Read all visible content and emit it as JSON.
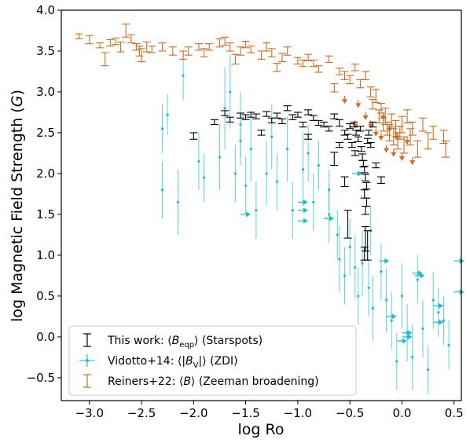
{
  "chart_data": {
    "type": "scatter",
    "xlabel": "log Ro",
    "ylabel": "log Magnetic Field Strength (G)",
    "xlim": [
      -3.27,
      0.57
    ],
    "ylim": [
      -0.78,
      4.0
    ],
    "xticks": [
      -3.0,
      -2.5,
      -2.0,
      -1.5,
      -1.0,
      -0.5,
      0.0,
      0.5
    ],
    "xtick_labels": [
      "−3.0",
      "−2.5",
      "−2.0",
      "−1.5",
      "−1.0",
      "−0.5",
      "0.0",
      "0.5"
    ],
    "yticks": [
      -0.5,
      0.0,
      0.5,
      1.0,
      1.5,
      2.0,
      2.5,
      3.0,
      3.5,
      4.0
    ],
    "ytick_labels": [
      "−0.5",
      "0.0",
      "0.5",
      "1.0",
      "1.5",
      "2.0",
      "2.5",
      "3.0",
      "3.5",
      "4.0"
    ],
    "grid": false,
    "legend_position": "lower-left",
    "series": [
      {
        "name": "This work: ⟨B_eqp⟩ (Starspots)",
        "color": "#000000",
        "marker": "errorbar-cap",
        "points": [
          [
            -2.0,
            2.46,
            0.04
          ],
          [
            -1.8,
            2.63,
            0.03
          ],
          [
            -1.7,
            2.74,
            0.03
          ],
          [
            -1.65,
            2.66,
            0.03
          ],
          [
            -1.55,
            2.71,
            0.03
          ],
          [
            -1.5,
            2.69,
            0.03
          ],
          [
            -1.45,
            2.72,
            0.03
          ],
          [
            -1.4,
            2.7,
            0.03
          ],
          [
            -1.3,
            2.73,
            0.03
          ],
          [
            -1.25,
            2.65,
            0.03
          ],
          [
            -1.2,
            2.71,
            0.03
          ],
          [
            -1.15,
            2.64,
            0.03
          ],
          [
            -1.1,
            2.8,
            0.03
          ],
          [
            -1.05,
            2.69,
            0.03
          ],
          [
            -1.0,
            2.72,
            0.03
          ],
          [
            -0.95,
            2.6,
            0.03
          ],
          [
            -0.9,
            2.75,
            0.03
          ],
          [
            -0.85,
            2.68,
            0.03
          ],
          [
            -0.8,
            2.62,
            0.03
          ],
          [
            -0.75,
            2.6,
            0.03
          ],
          [
            -0.7,
            2.55,
            0.03
          ],
          [
            -0.65,
            2.7,
            0.03
          ],
          [
            -0.6,
            2.62,
            0.04
          ],
          [
            -0.55,
            2.5,
            0.03
          ],
          [
            -0.52,
            2.45,
            0.03
          ],
          [
            -0.5,
            2.58,
            0.03
          ],
          [
            -0.48,
            2.35,
            0.03
          ],
          [
            -0.46,
            2.6,
            0.03
          ],
          [
            -0.44,
            2.5,
            0.03
          ],
          [
            -0.42,
            2.42,
            0.03
          ],
          [
            -0.4,
            2.55,
            0.03
          ],
          [
            -0.39,
            2.3,
            0.03
          ],
          [
            -0.38,
            2.2,
            0.04
          ],
          [
            -0.37,
            2.12,
            0.04
          ],
          [
            -0.36,
            2.05,
            0.04
          ],
          [
            -0.35,
            1.95,
            0.04
          ],
          [
            -0.34,
            1.85,
            0.04
          ],
          [
            -0.36,
            1.75,
            0.05
          ],
          [
            -0.34,
            1.65,
            0.05
          ],
          [
            -0.35,
            1.55,
            0.05
          ],
          [
            -0.33,
            2.4,
            0.03
          ],
          [
            -0.32,
            2.5,
            0.03
          ],
          [
            -0.3,
            2.35,
            0.03
          ],
          [
            -0.28,
            2.6,
            0.03
          ],
          [
            -0.25,
            2.1,
            0.03
          ],
          [
            -0.65,
            2.18,
            0.08
          ],
          [
            -0.55,
            1.9,
            0.06
          ],
          [
            -0.52,
            1.38,
            0.17
          ],
          [
            -0.36,
            1.02,
            0.08
          ],
          [
            -0.35,
            1.2,
            0.15
          ],
          [
            -0.33,
            1.12,
            0.18
          ],
          [
            -0.2,
            1.92,
            0.04
          ],
          [
            -1.35,
            2.5,
            0.03
          ],
          [
            -0.9,
            2.45,
            0.03
          ],
          [
            -0.6,
            2.35,
            0.03
          ],
          [
            -0.45,
            2.25,
            0.03
          ]
        ]
      },
      {
        "name": "Vidotto+14: ⟨|B_V|⟩ (ZDI)",
        "color": "#17becf",
        "marker": "dot-errorbar",
        "points": [
          [
            -2.3,
            2.55,
            0.3
          ],
          [
            -2.3,
            1.8,
            0.35
          ],
          [
            -2.25,
            2.72,
            0.25
          ],
          [
            -2.15,
            1.65,
            0.4
          ],
          [
            -2.1,
            3.2,
            0.3
          ],
          [
            -1.95,
            2.15,
            0.35
          ],
          [
            -1.9,
            1.95,
            0.3
          ],
          [
            -1.75,
            2.2,
            0.4
          ],
          [
            -1.7,
            2.8,
            0.5
          ],
          [
            -1.65,
            3.0,
            0.45
          ],
          [
            -1.6,
            2.0,
            0.35
          ],
          [
            -1.55,
            2.6,
            0.4
          ],
          [
            -1.5,
            1.85,
            0.35
          ],
          [
            -1.45,
            2.3,
            0.4
          ],
          [
            -1.4,
            1.55,
            0.35
          ],
          [
            -1.3,
            2.0,
            0.4
          ],
          [
            -1.25,
            2.45,
            0.4
          ],
          [
            -1.2,
            1.9,
            0.35
          ],
          [
            -1.1,
            2.3,
            0.4
          ],
          [
            -1.05,
            1.55,
            0.35
          ],
          [
            -0.95,
            2.05,
            0.45
          ],
          [
            -0.85,
            1.65,
            0.35
          ],
          [
            -0.8,
            2.1,
            0.3
          ],
          [
            -0.7,
            1.5,
            0.35
          ],
          [
            -0.62,
            1.25,
            0.3
          ],
          [
            -0.6,
            0.95,
            0.4
          ],
          [
            -0.55,
            0.75,
            0.35
          ],
          [
            -0.5,
            1.1,
            0.35
          ],
          [
            -0.45,
            0.85,
            0.4
          ],
          [
            -0.42,
            0.5,
            0.35
          ],
          [
            -0.38,
            0.9,
            0.4
          ],
          [
            -0.32,
            0.6,
            0.35
          ],
          [
            -0.3,
            1.3,
            0.3
          ],
          [
            -0.28,
            0.35,
            0.4
          ],
          [
            -0.2,
            0.8,
            0.35
          ],
          [
            -0.15,
            0.45,
            0.4
          ],
          [
            -0.1,
            0.2,
            0.35
          ],
          [
            -0.05,
            -0.3,
            0.35
          ],
          [
            0.0,
            0.5,
            0.4
          ],
          [
            0.05,
            0.05,
            0.35
          ],
          [
            0.1,
            -0.25,
            0.4
          ],
          [
            0.15,
            0.7,
            0.3
          ],
          [
            0.2,
            0.1,
            0.35
          ],
          [
            0.25,
            -0.4,
            0.3
          ],
          [
            0.3,
            0.45,
            0.35
          ],
          [
            0.35,
            0.3,
            0.3
          ],
          [
            0.4,
            0.2,
            0.3
          ],
          [
            0.45,
            -0.1,
            0.3
          ],
          [
            -1.55,
            2.4,
            0.3
          ],
          [
            -0.9,
            2.25,
            0.35
          ],
          [
            -0.7,
            1.8,
            0.25
          ]
        ],
        "upper_limits": [
          [
            -1.55,
            1.5
          ],
          [
            -1.0,
            1.65
          ],
          [
            -1.0,
            1.55
          ],
          [
            -1.0,
            1.42
          ],
          [
            -0.75,
            1.45
          ],
          [
            -0.48,
            2.0
          ],
          [
            -0.22,
            0.93
          ],
          [
            0.1,
            0.78
          ],
          [
            0.12,
            0.75
          ],
          [
            -0.15,
            0.25
          ],
          [
            0.0,
            0.05
          ],
          [
            0.0,
            0.0
          ],
          [
            -0.05,
            -0.05
          ],
          [
            0.3,
            0.38
          ],
          [
            0.3,
            0.18
          ],
          [
            0.5,
            0.93
          ],
          [
            0.5,
            0.55
          ]
        ]
      },
      {
        "name": "Reiners+22: ⟨B⟩ (Zeeman broadening)",
        "color": "#d2691e",
        "marker": "errorbar-cap",
        "points": [
          [
            -3.1,
            3.68,
            0.03
          ],
          [
            -3.0,
            3.64,
            0.05
          ],
          [
            -2.9,
            3.57,
            0.03
          ],
          [
            -2.85,
            3.4,
            0.08
          ],
          [
            -2.8,
            3.6,
            0.04
          ],
          [
            -2.75,
            3.62,
            0.04
          ],
          [
            -2.7,
            3.55,
            0.06
          ],
          [
            -2.65,
            3.75,
            0.08
          ],
          [
            -2.6,
            3.65,
            0.05
          ],
          [
            -2.55,
            3.55,
            0.04
          ],
          [
            -2.52,
            3.5,
            0.06
          ],
          [
            -2.5,
            3.45,
            0.08
          ],
          [
            -2.45,
            3.55,
            0.06
          ],
          [
            -2.4,
            3.52,
            0.04
          ],
          [
            -2.3,
            3.55,
            0.05
          ],
          [
            -2.2,
            3.5,
            0.05
          ],
          [
            -2.1,
            3.45,
            0.05
          ],
          [
            -2.05,
            3.5,
            0.05
          ],
          [
            -1.95,
            3.55,
            0.04
          ],
          [
            -1.9,
            3.48,
            0.05
          ],
          [
            -1.85,
            3.55,
            0.04
          ],
          [
            -1.75,
            3.6,
            0.05
          ],
          [
            -1.7,
            3.62,
            0.05
          ],
          [
            -1.65,
            3.55,
            0.05
          ],
          [
            -1.55,
            3.5,
            0.05
          ],
          [
            -1.5,
            3.58,
            0.04
          ],
          [
            -1.45,
            3.52,
            0.04
          ],
          [
            -1.35,
            3.45,
            0.05
          ],
          [
            -1.3,
            3.55,
            0.05
          ],
          [
            -1.25,
            3.48,
            0.05
          ],
          [
            -1.15,
            3.42,
            0.05
          ],
          [
            -1.1,
            3.5,
            0.05
          ],
          [
            -1.0,
            3.38,
            0.04
          ],
          [
            -0.95,
            3.35,
            0.04
          ],
          [
            -0.9,
            3.42,
            0.04
          ],
          [
            -0.85,
            3.35,
            0.04
          ],
          [
            -0.8,
            3.28,
            0.04
          ],
          [
            -0.7,
            3.4,
            0.04
          ],
          [
            -0.6,
            3.25,
            0.04
          ],
          [
            -0.55,
            3.2,
            0.05
          ],
          [
            -0.5,
            3.15,
            0.05
          ],
          [
            -0.45,
            3.3,
            0.04
          ],
          [
            -0.4,
            3.1,
            0.05
          ],
          [
            -0.35,
            3.2,
            0.05
          ],
          [
            -0.3,
            3.0,
            0.06
          ],
          [
            -0.28,
            2.85,
            0.06
          ],
          [
            -0.25,
            2.95,
            0.08
          ],
          [
            -0.22,
            2.7,
            0.08
          ],
          [
            -0.2,
            2.8,
            0.06
          ],
          [
            -0.18,
            2.6,
            0.08
          ],
          [
            -0.16,
            2.7,
            0.1
          ],
          [
            -0.14,
            2.55,
            0.08
          ],
          [
            -0.12,
            2.5,
            0.1
          ],
          [
            -0.1,
            2.65,
            0.08
          ],
          [
            -0.08,
            2.45,
            0.1
          ],
          [
            -0.06,
            2.55,
            0.1
          ],
          [
            -0.04,
            2.4,
            0.1
          ],
          [
            -0.02,
            2.5,
            0.08
          ],
          [
            0.0,
            2.6,
            0.1
          ],
          [
            0.02,
            2.35,
            0.1
          ],
          [
            0.05,
            2.7,
            0.08
          ],
          [
            0.08,
            2.45,
            0.1
          ],
          [
            0.1,
            2.55,
            0.08
          ],
          [
            0.15,
            2.3,
            0.1
          ],
          [
            0.2,
            2.6,
            0.08
          ],
          [
            0.25,
            2.4,
            0.1
          ],
          [
            0.3,
            2.5,
            0.08
          ],
          [
            0.4,
            2.45,
            0.08
          ],
          [
            0.42,
            2.3,
            0.1
          ],
          [
            -1.6,
            3.4,
            0.06
          ],
          [
            -1.2,
            3.3,
            0.05
          ],
          [
            -0.65,
            3.05,
            0.05
          ]
        ],
        "upper_limits": [
          [
            -0.55,
            2.95
          ],
          [
            -0.45,
            2.65
          ],
          [
            -0.35,
            2.75
          ],
          [
            -0.25,
            2.55
          ],
          [
            -0.2,
            2.5
          ],
          [
            -0.15,
            2.35
          ],
          [
            -0.12,
            2.6
          ],
          [
            -0.08,
            2.3
          ],
          [
            -0.05,
            2.5
          ],
          [
            0.0,
            2.25
          ],
          [
            0.05,
            2.45
          ],
          [
            0.1,
            2.2
          ],
          [
            -0.42,
            2.9
          ],
          [
            -0.3,
            2.65
          ],
          [
            -0.18,
            2.75
          ]
        ]
      }
    ]
  },
  "legend": {
    "entries": [
      {
        "pre": "This work: ⟨",
        "sym": "B",
        "sub": "eqp",
        "post": "⟩ (Starspots)",
        "color": "#000000"
      },
      {
        "pre": "Vidotto+14: ⟨|",
        "sym": "B",
        "sub": "V",
        "post": "|⟩ (ZDI)",
        "color": "#17becf"
      },
      {
        "pre": "Reiners+22: ⟨",
        "sym": "B",
        "sub": "",
        "post": "⟩ (Zeeman broadening)",
        "color": "#d2691e"
      }
    ]
  }
}
